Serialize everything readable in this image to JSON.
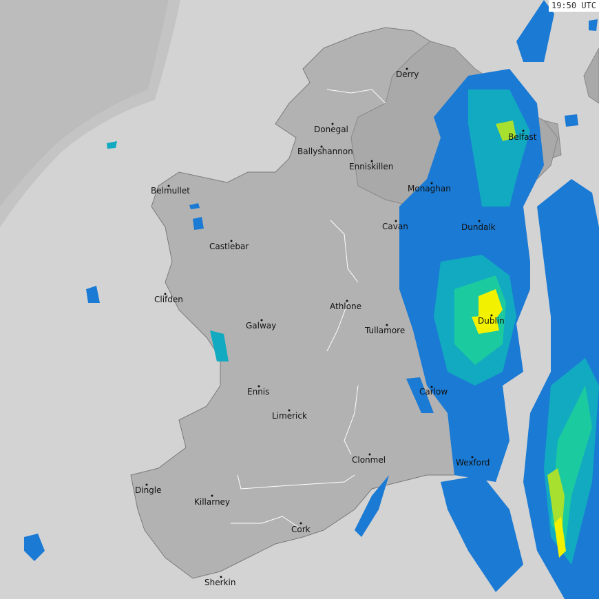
{
  "timestamp": "19:50 UTC",
  "colors": {
    "sea": "#d3d3d3",
    "out_of_range": "#c6c6c6",
    "land": "#b2b2b2",
    "northern_ireland": "#a9a9a9",
    "rain_light": "#1a7ad4",
    "rain_moderate": "#12aac0",
    "rain_medium": "#1ccaa0",
    "rain_heavy": "#a8e030",
    "rain_very_heavy": "#f2f200"
  },
  "cities": [
    "Derry",
    "Donegal",
    "Ballyshannon",
    "Enniskillen",
    "Monaghan",
    "Belfast",
    "Belmullet",
    "Cavan",
    "Dundalk",
    "Castlebar",
    "Clifden",
    "Athlone",
    "Galway",
    "Tullamore",
    "Dublin",
    "Ennis",
    "Carlow",
    "Limerick",
    "Clonmel",
    "Wexford",
    "Dingle",
    "Killarney",
    "Cork",
    "Sherkin"
  ]
}
